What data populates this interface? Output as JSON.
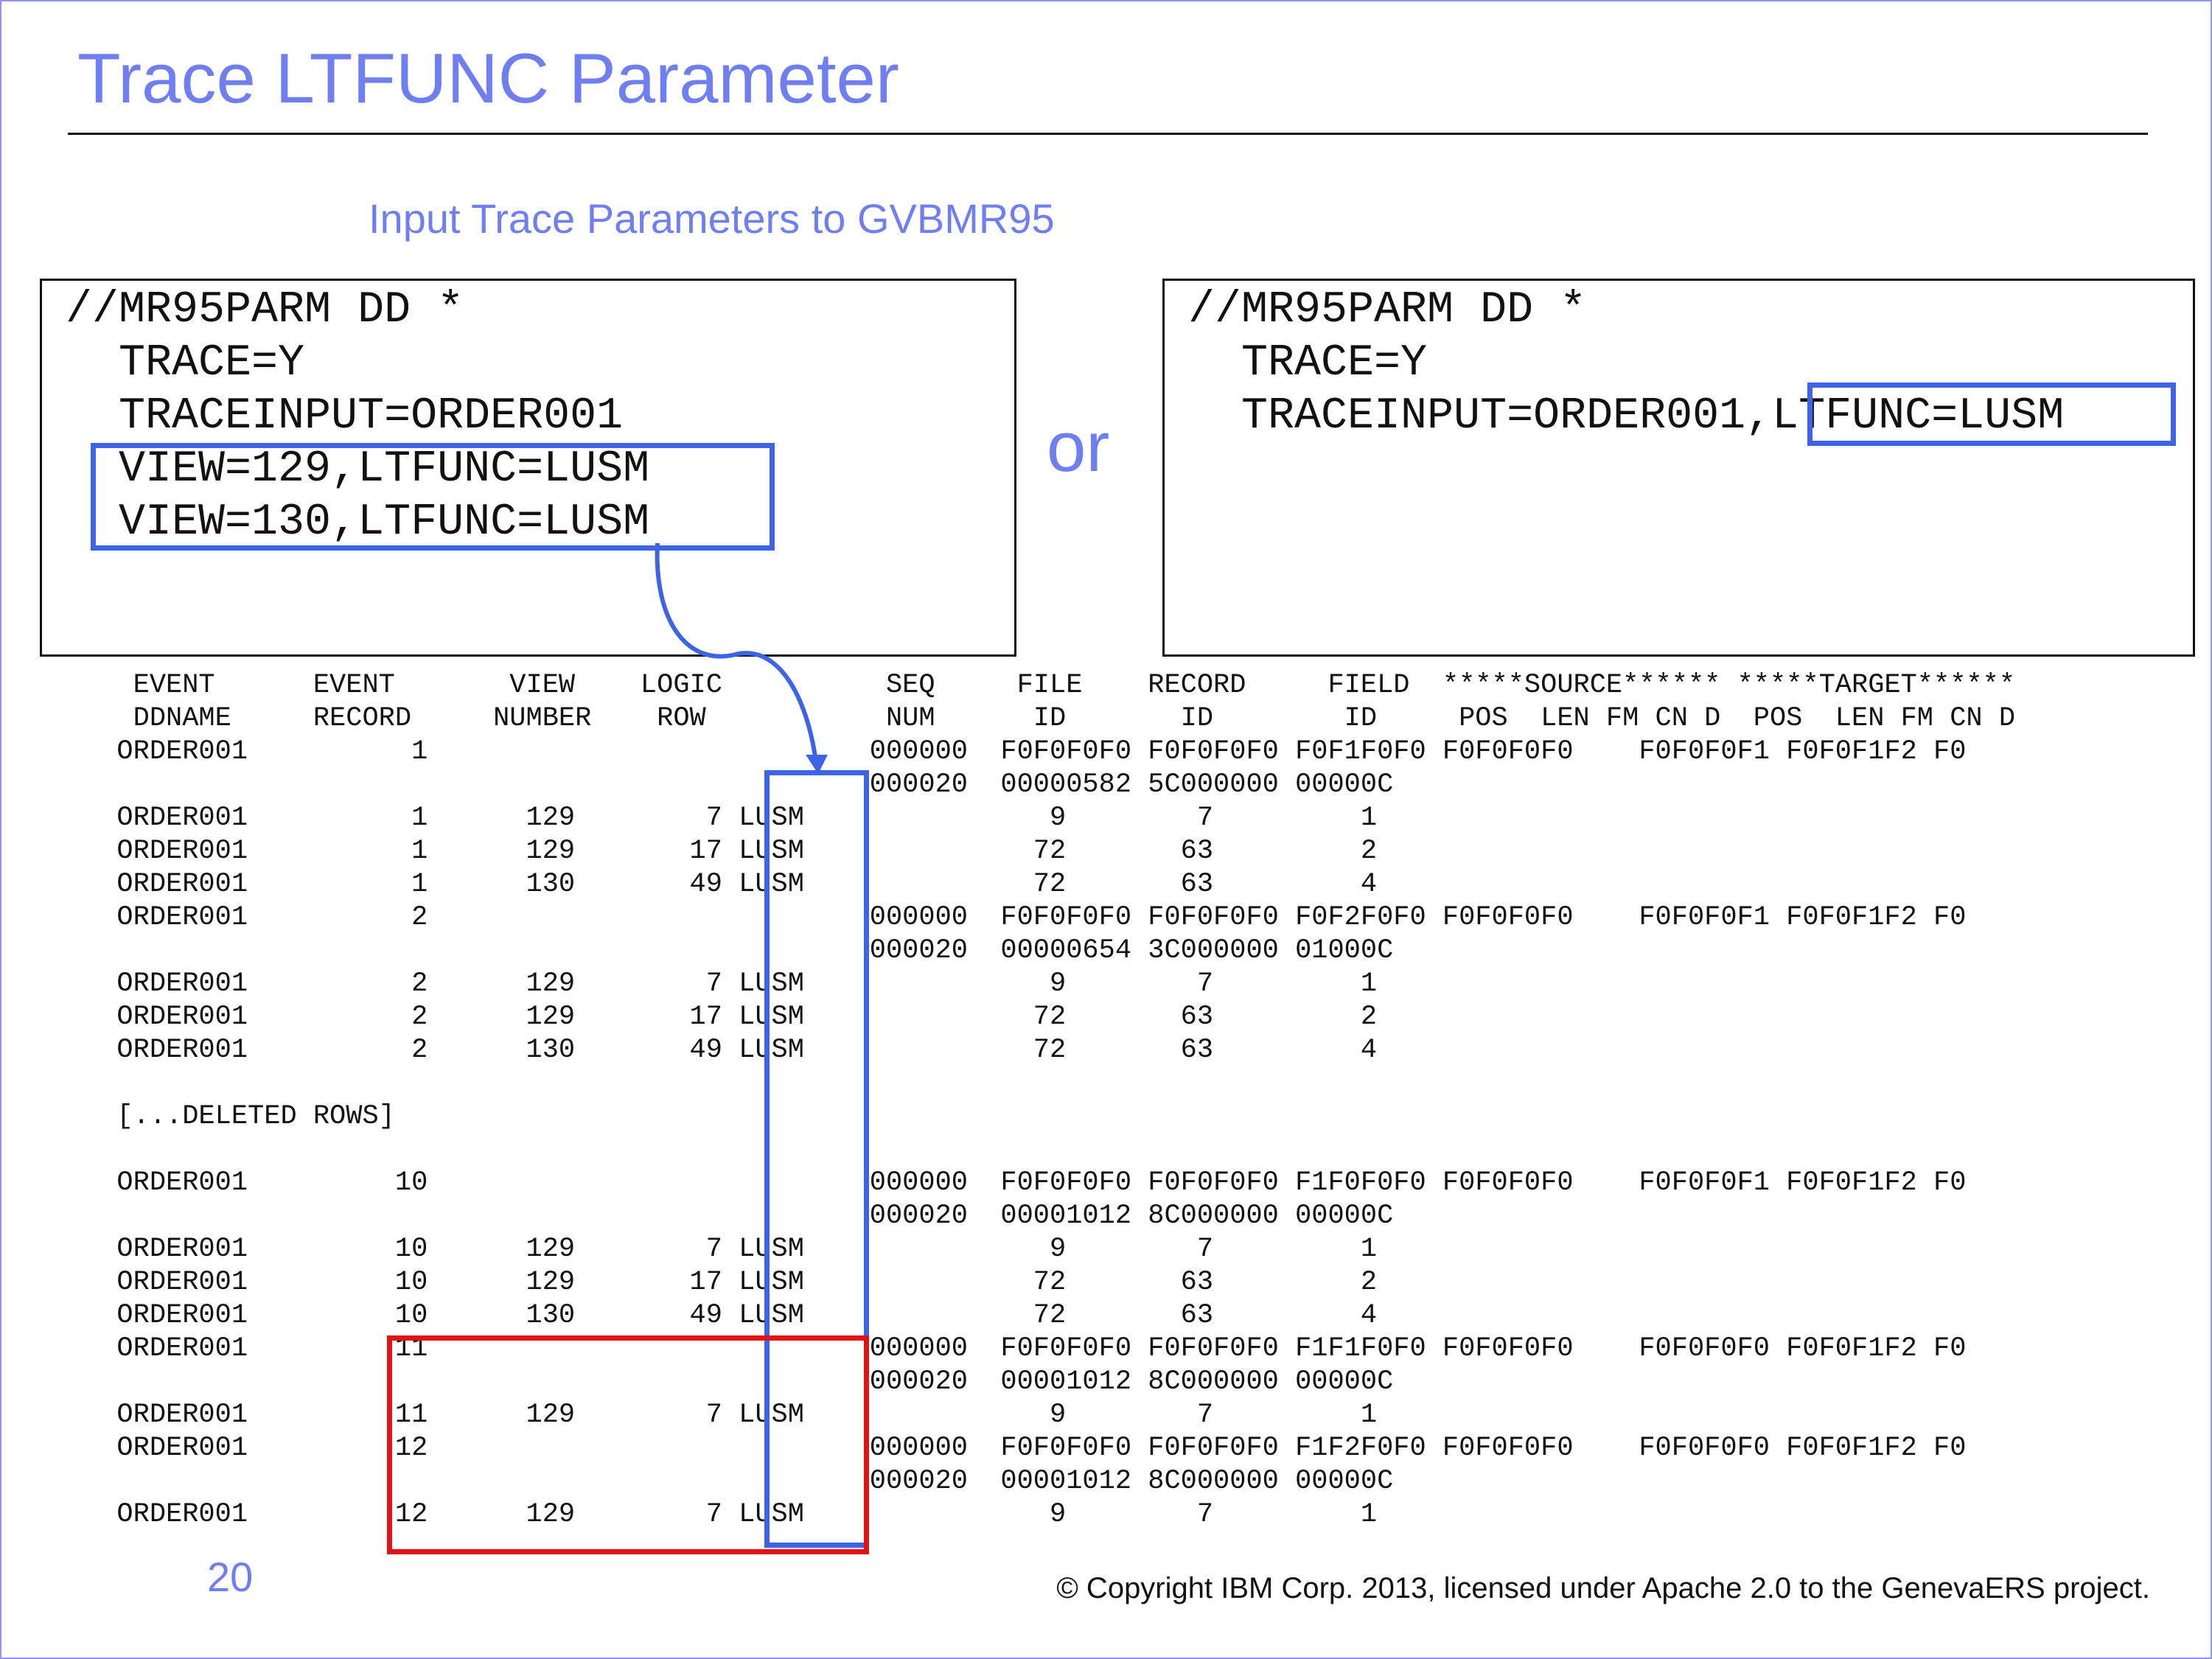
{
  "slide": {
    "title": "Trace LTFUNC Parameter",
    "subtitle": "Input Trace Parameters to GVBMR95",
    "or_word": "or",
    "page_number": "20",
    "copyright": "© Copyright IBM Corp. 2013, licensed under Apache 2.0 to the GenevaERS project."
  },
  "jcl_left": {
    "lines": [
      "//MR95PARM DD *",
      "  TRACE=Y",
      "  TRACEINPUT=ORDER001",
      "  VIEW=129,LTFUNC=LUSM",
      "  VIEW=130,LTFUNC=LUSM"
    ]
  },
  "jcl_right": {
    "lines": [
      "//MR95PARM DD *",
      "  TRACE=Y",
      "  TRACEINPUT=ORDER001,LTFUNC=LUSM"
    ]
  },
  "trace_output": {
    "lines": [
      "   EVENT      EVENT       VIEW    LOGIC          SEQ     FILE    RECORD     FIELD  *****SOURCE****** *****TARGET******",
      "   DDNAME     RECORD     NUMBER    ROW           NUM      ID       ID        ID     POS  LEN FM CN D  POS  LEN FM CN D",
      "  ORDER001          1                           000000  F0F0F0F0 F0F0F0F0 F0F1F0F0 F0F0F0F0    F0F0F0F1 F0F0F1F2 F0",
      "                                                000020  00000582 5C000000 00000C",
      "  ORDER001          1      129        7 LUSM               9        7         1",
      "  ORDER001          1      129       17 LUSM              72       63         2",
      "  ORDER001          1      130       49 LUSM              72       63         4",
      "  ORDER001          2                           000000  F0F0F0F0 F0F0F0F0 F0F2F0F0 F0F0F0F0    F0F0F0F1 F0F0F1F2 F0",
      "                                                000020  00000654 3C000000 01000C",
      "  ORDER001          2      129        7 LUSM               9        7         1",
      "  ORDER001          2      129       17 LUSM              72       63         2",
      "  ORDER001          2      130       49 LUSM              72       63         4",
      "",
      "  [...DELETED ROWS]",
      "",
      "  ORDER001         10                           000000  F0F0F0F0 F0F0F0F0 F1F0F0F0 F0F0F0F0    F0F0F0F1 F0F0F1F2 F0",
      "                                                000020  00001012 8C000000 00000C",
      "  ORDER001         10      129        7 LUSM               9        7         1",
      "  ORDER001         10      129       17 LUSM              72       63         2",
      "  ORDER001         10      130       49 LUSM              72       63         4",
      "  ORDER001         11                           000000  F0F0F0F0 F0F0F0F0 F1F1F0F0 F0F0F0F0    F0F0F0F0 F0F0F1F2 F0",
      "                                                000020  00001012 8C000000 00000C",
      "  ORDER001         11      129        7 LUSM               9        7         1",
      "  ORDER001         12                           000000  F0F0F0F0 F0F0F0F0 F1F2F0F0 F0F0F0F0    F0F0F0F0 F0F0F1F2 F0",
      "                                                000020  00001012 8C000000 00000C",
      "  ORDER001         12      129        7 LUSM               9        7         1"
    ]
  },
  "colors": {
    "accent_text": "#6f7ef0",
    "highlight_blue": "#3d63e6",
    "highlight_red": "#e01414"
  }
}
